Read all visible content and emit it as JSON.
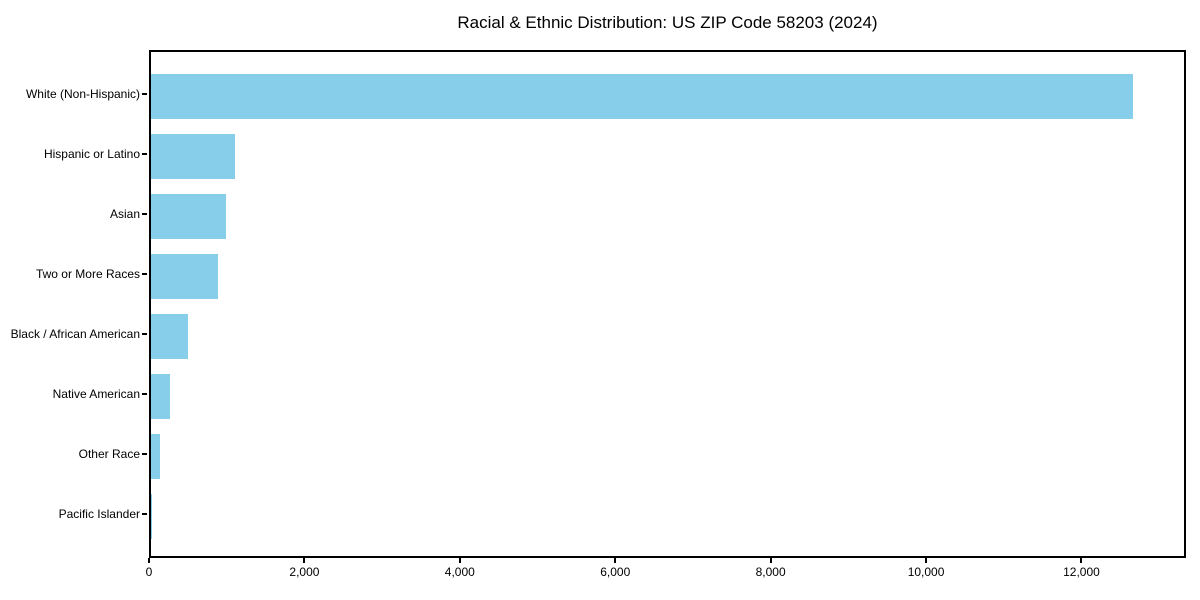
{
  "chart_data": {
    "type": "bar",
    "orientation": "horizontal",
    "title": "Racial & Ethnic Distribution: US ZIP Code 58203 (2024)",
    "xlabel": "",
    "ylabel": "",
    "categories": [
      "White (Non-Hispanic)",
      "Hispanic or Latino",
      "Asian",
      "Two or More Races",
      "Black / African American",
      "Native American",
      "Other Race",
      "Pacific Islander"
    ],
    "values": [
      12690,
      1090,
      970,
      860,
      475,
      245,
      120,
      10
    ],
    "xlim": [
      0,
      13345
    ],
    "x_ticks": [
      0,
      2000,
      4000,
      6000,
      8000,
      10000,
      12000
    ],
    "x_tick_labels": [
      "0",
      "2,000",
      "4,000",
      "6,000",
      "8,000",
      "10,000",
      "12,000"
    ],
    "bar_color": "#87CEEB",
    "spine_color": "#000000",
    "grid": false,
    "legend": null
  }
}
